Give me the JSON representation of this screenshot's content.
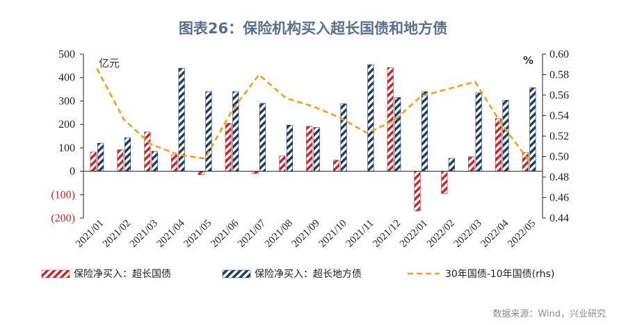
{
  "title": "图表26：保险机构买入超长国债和地方债",
  "source": "数据来源：Wind，兴业研究",
  "colors": {
    "series1": "#c0282d",
    "series2": "#1f3b66",
    "line": "#f0a020",
    "title": "#5a6f8a"
  },
  "chart_data": {
    "type": "bar",
    "categories": [
      "2021/01",
      "2021/02",
      "2021/03",
      "2021/04",
      "2021/05",
      "2021/06",
      "2021/07",
      "2021/08",
      "2021/09",
      "2021/10",
      "2021/11",
      "2021/12",
      "2022/01",
      "2022/02",
      "2022/03",
      "2022/04",
      "2022/05"
    ],
    "y_left": {
      "unit": "亿元",
      "range": [
        -200,
        500
      ],
      "ticks": [
        500,
        400,
        300,
        200,
        100,
        0,
        -100,
        -200
      ],
      "tick_labels": [
        "500",
        "400",
        "300",
        "200",
        "100",
        "0",
        "(100)",
        "(200)"
      ]
    },
    "y_right": {
      "unit": "%",
      "range": [
        0.44,
        0.6
      ],
      "ticks": [
        0.6,
        0.58,
        0.56,
        0.54,
        0.52,
        0.5,
        0.48,
        0.46,
        0.44
      ],
      "tick_labels": [
        "0.60",
        "0.58",
        "0.56",
        "0.54",
        "0.52",
        "0.50",
        "0.48",
        "0.46",
        "0.44"
      ]
    },
    "series": [
      {
        "name": "保险净买入：超长国债",
        "type": "bar",
        "axis": "left",
        "values": [
          82,
          92,
          168,
          70,
          -15,
          205,
          -10,
          65,
          192,
          47,
          0,
          443,
          -170,
          -95,
          62,
          225,
          80
        ]
      },
      {
        "name": "保险净买入：超长地方债",
        "type": "bar",
        "axis": "left",
        "values": [
          120,
          143,
          85,
          440,
          340,
          340,
          290,
          197,
          187,
          288,
          455,
          315,
          340,
          55,
          335,
          303,
          357
        ]
      },
      {
        "name": "30年国债-10年国债(rhs)",
        "type": "line",
        "axis": "right",
        "values": [
          0.586,
          0.536,
          0.512,
          0.502,
          0.498,
          0.545,
          0.58,
          0.557,
          0.549,
          0.538,
          0.523,
          0.535,
          0.559,
          0.566,
          0.573,
          0.531,
          0.496
        ]
      }
    ],
    "legend_position": "bottom",
    "grid": false
  }
}
